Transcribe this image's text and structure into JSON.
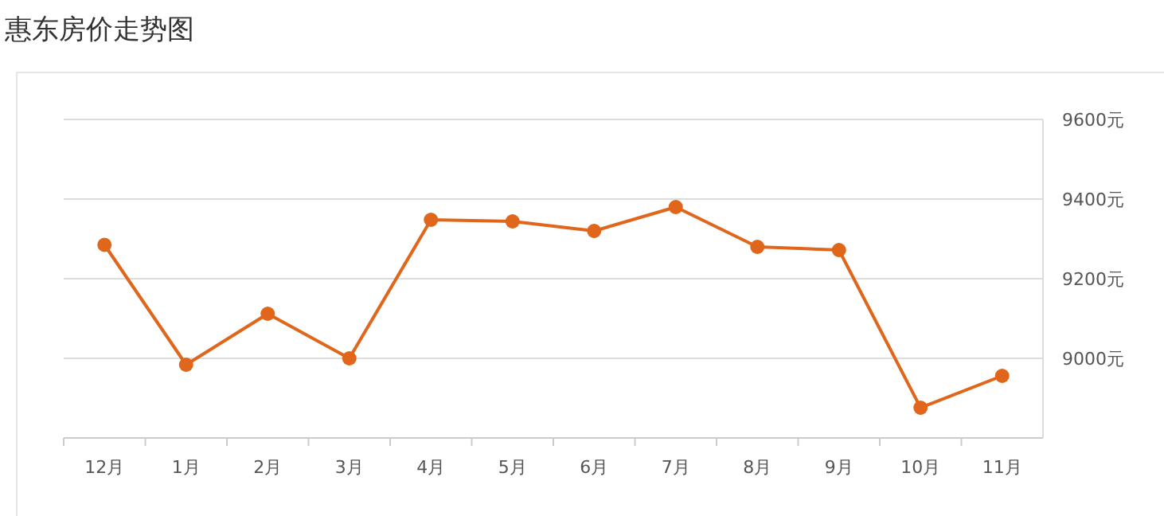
{
  "chart_data": {
    "type": "line",
    "title": "惠东房价走势图",
    "categories": [
      "12月",
      "1月",
      "2月",
      "3月",
      "4月",
      "5月",
      "6月",
      "7月",
      "8月",
      "9月",
      "10月",
      "11月"
    ],
    "series": [
      {
        "color": "#e0661b",
        "values": [
          9285,
          8984,
          9112,
          9000,
          9348,
          9344,
          9320,
          9380,
          9280,
          9272,
          8876,
          8956
        ]
      }
    ],
    "ylim": [
      8800,
      9600
    ],
    "yticks": [
      {
        "value": 9000,
        "label": "9000元"
      },
      {
        "value": 9200,
        "label": "9200元"
      },
      {
        "value": 9400,
        "label": "9400元"
      },
      {
        "value": 9600,
        "label": "9600元"
      }
    ],
    "grid": "y",
    "marker": "circle",
    "line_style": "solid"
  }
}
